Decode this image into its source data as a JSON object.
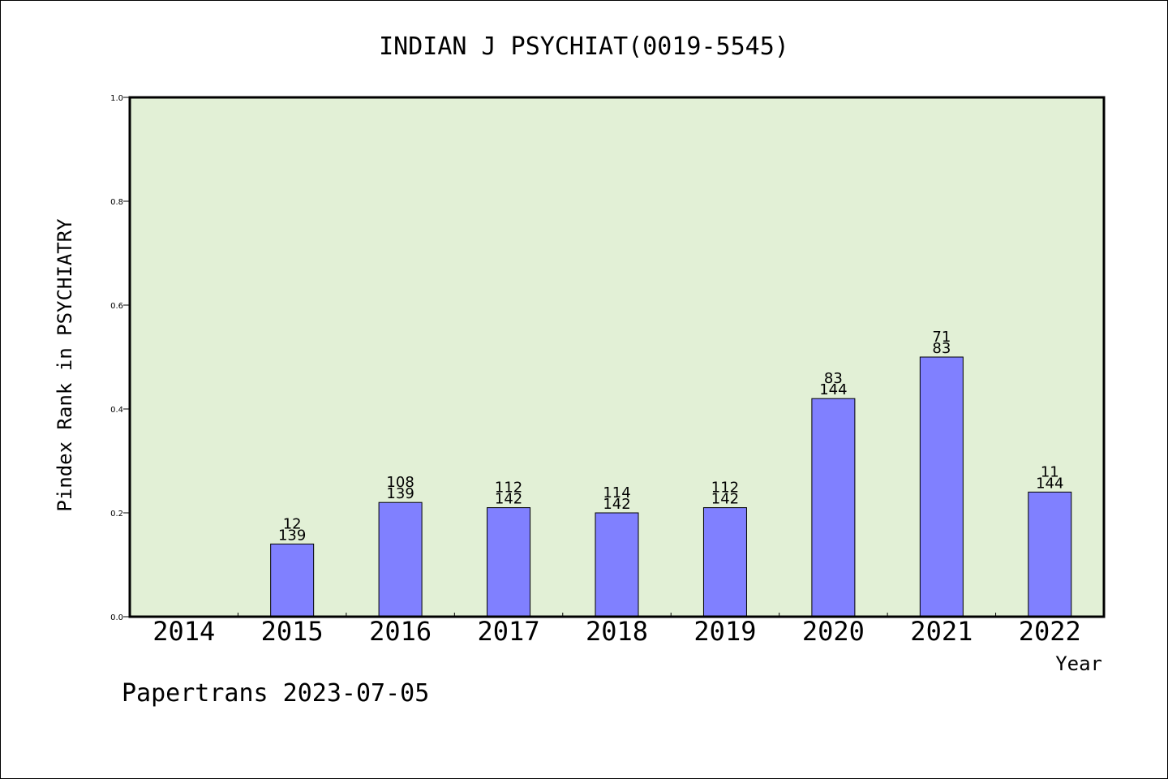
{
  "chart_data": {
    "type": "bar",
    "title": "INDIAN J PSYCHIAT(0019-5545)",
    "xlabel": "Year",
    "ylabel": "Pindex Rank in PSYCHIATRY",
    "ylim": [
      0.0,
      1.0
    ],
    "yticks": [
      "0.0",
      "0.2",
      "0.4",
      "0.6",
      "0.8",
      "1.0"
    ],
    "categories": [
      "2014",
      "2015",
      "2016",
      "2017",
      "2018",
      "2019",
      "2020",
      "2021",
      "2022"
    ],
    "values": [
      null,
      0.14,
      0.22,
      0.21,
      0.2,
      0.21,
      0.42,
      0.5,
      0.24
    ],
    "rank_labels": [
      "",
      "12",
      "108",
      "112",
      "114",
      "112",
      "83",
      "71",
      "11"
    ],
    "total_labels": [
      "",
      "139",
      "139",
      "142",
      "142",
      "142",
      "144",
      "83",
      "144"
    ],
    "grid": false,
    "colors": {
      "plot_background": "#e2f0d6",
      "bar_fill": "#8080ff",
      "bar_stroke": "#000000",
      "frame": "#000000"
    }
  },
  "footer": {
    "watermark": "Papertrans 2023-07-05"
  }
}
